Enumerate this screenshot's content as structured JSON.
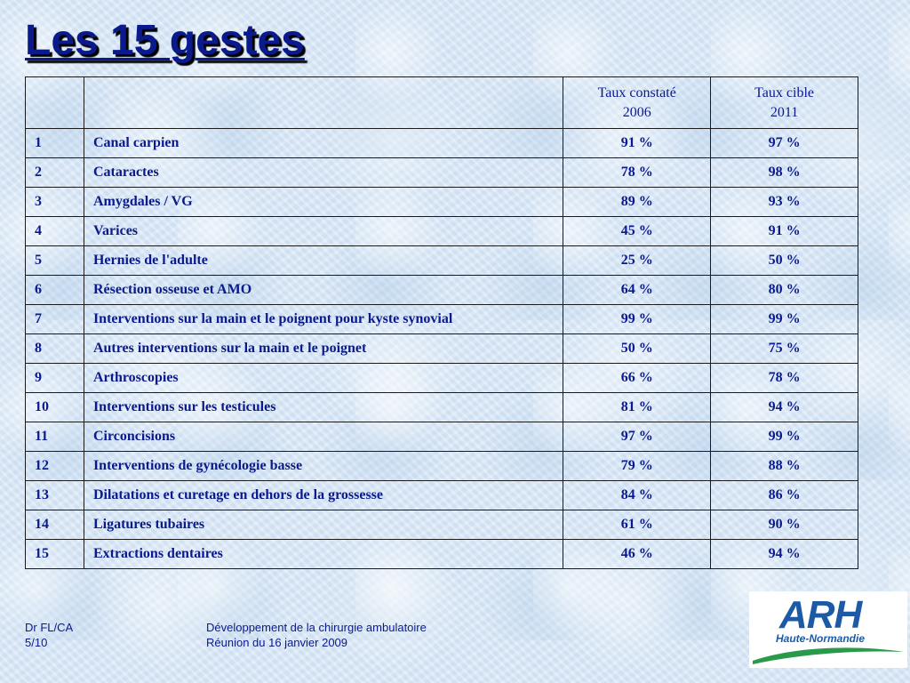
{
  "slide": {
    "title": "Les 15 gestes"
  },
  "table": {
    "headers": {
      "num": "",
      "label": "",
      "rate_observed_line1": "Taux constaté",
      "rate_observed_line2": "2006",
      "rate_target_line1": "Taux cible",
      "rate_target_line2": "2011"
    },
    "rows": [
      {
        "num": "1",
        "label": "Canal carpien",
        "observed": "91 %",
        "target": "97 %"
      },
      {
        "num": "2",
        "label": "Cataractes",
        "observed": "78 %",
        "target": "98 %"
      },
      {
        "num": "3",
        "label": "Amygdales / VG",
        "observed": "89 %",
        "target": "93 %"
      },
      {
        "num": "4",
        "label": "Varices",
        "observed": "45 %",
        "target": "91 %"
      },
      {
        "num": "5",
        "label": "Hernies de l'adulte",
        "observed": "25 %",
        "target": "50 %"
      },
      {
        "num": "6",
        "label": "Résection osseuse et AMO",
        "observed": "64 %",
        "target": "80 %"
      },
      {
        "num": "7",
        "label": "Interventions sur la main et le poignent pour kyste synovial",
        "observed": "99 %",
        "target": "99 %"
      },
      {
        "num": "8",
        "label": "Autres interventions sur la main et le poignet",
        "observed": "50 %",
        "target": "75 %"
      },
      {
        "num": "9",
        "label": "Arthroscopies",
        "observed": "66 %",
        "target": "78 %"
      },
      {
        "num": "10",
        "label": "Interventions sur les testicules",
        "observed": "81 %",
        "target": "94 %"
      },
      {
        "num": "11",
        "label": "Circoncisions",
        "observed": "97 %",
        "target": "99 %"
      },
      {
        "num": "12",
        "label": "Interventions de gynécologie basse",
        "observed": "79 %",
        "target": "88 %"
      },
      {
        "num": "13",
        "label": "Dilatations et curetage en dehors de la grossesse",
        "observed": "84 %",
        "target": "86 %"
      },
      {
        "num": "14",
        "label": "Ligatures tubaires",
        "observed": "61 %",
        "target": "90 %"
      },
      {
        "num": "15",
        "label": "Extractions dentaires",
        "observed": "46 %",
        "target": "94 %"
      }
    ]
  },
  "footer": {
    "author": "Dr FL/CA",
    "page": "5/10",
    "subject": "Développement de la chirurgie ambulatoire",
    "meeting": "Réunion du 16 janvier 2009"
  },
  "logo": {
    "name": "ARH",
    "region": "Haute-Normandie",
    "primary_color": "#1c5aa5",
    "swoosh_color": "#2a9a4a"
  },
  "colors": {
    "text": "#0a1a8c",
    "background": "#dce9f6"
  }
}
